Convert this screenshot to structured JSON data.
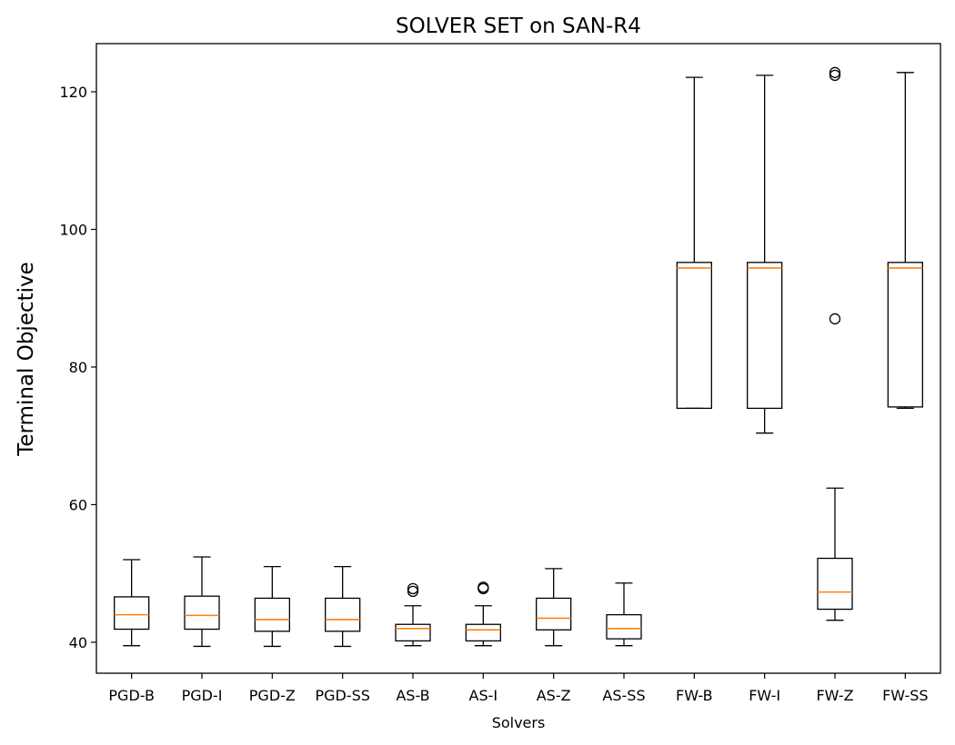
{
  "chart_data": {
    "type": "box",
    "title": "SOLVER SET on SAN-R4",
    "xlabel": "Solvers",
    "ylabel": "Terminal Objective",
    "ylim": [
      35.5,
      127
    ],
    "yticks": [
      40,
      60,
      80,
      100,
      120
    ],
    "grid": false,
    "categories": [
      "PGD-B",
      "PGD-I",
      "PGD-Z",
      "PGD-SS",
      "AS-B",
      "AS-I",
      "AS-Z",
      "AS-SS",
      "FW-B",
      "FW-I",
      "FW-Z",
      "FW-SS"
    ],
    "boxes": [
      {
        "label": "PGD-B",
        "whislo": 39.5,
        "q1": 41.9,
        "med": 44.0,
        "q3": 46.6,
        "whishi": 52.0,
        "fliers": []
      },
      {
        "label": "PGD-I",
        "whislo": 39.4,
        "q1": 41.9,
        "med": 43.9,
        "q3": 46.7,
        "whishi": 52.4,
        "fliers": []
      },
      {
        "label": "PGD-Z",
        "whislo": 39.4,
        "q1": 41.6,
        "med": 43.3,
        "q3": 46.4,
        "whishi": 51.0,
        "fliers": []
      },
      {
        "label": "PGD-SS",
        "whislo": 39.4,
        "q1": 41.6,
        "med": 43.3,
        "q3": 46.4,
        "whishi": 51.0,
        "fliers": []
      },
      {
        "label": "AS-B",
        "whislo": 39.5,
        "q1": 40.2,
        "med": 42.0,
        "q3": 42.6,
        "whishi": 45.3,
        "fliers": [
          47.4,
          47.8
        ]
      },
      {
        "label": "AS-I",
        "whislo": 39.5,
        "q1": 40.2,
        "med": 41.8,
        "q3": 42.6,
        "whishi": 45.3,
        "fliers": [
          47.8,
          48.0
        ]
      },
      {
        "label": "AS-Z",
        "whislo": 39.5,
        "q1": 41.8,
        "med": 43.5,
        "q3": 46.4,
        "whishi": 50.7,
        "fliers": []
      },
      {
        "label": "AS-SS",
        "whislo": 39.5,
        "q1": 40.5,
        "med": 42.0,
        "q3": 44.0,
        "whishi": 48.6,
        "fliers": []
      },
      {
        "label": "FW-B",
        "whislo": 74.0,
        "q1": 74.0,
        "med": 94.4,
        "q3": 95.2,
        "whishi": 122.1,
        "fliers": []
      },
      {
        "label": "FW-I",
        "whislo": 70.4,
        "q1": 74.0,
        "med": 94.4,
        "q3": 95.2,
        "whishi": 122.4,
        "fliers": []
      },
      {
        "label": "FW-Z",
        "whislo": 43.2,
        "q1": 44.8,
        "med": 47.3,
        "q3": 52.2,
        "whishi": 62.4,
        "fliers": [
          87.0,
          122.4,
          122.8
        ]
      },
      {
        "label": "FW-SS",
        "whislo": 74.0,
        "q1": 74.2,
        "med": 94.4,
        "q3": 95.2,
        "whishi": 122.8,
        "fliers": []
      }
    ],
    "colors": {
      "box": "#000000",
      "median": "#ff7f0e",
      "background": "#ffffff"
    }
  }
}
